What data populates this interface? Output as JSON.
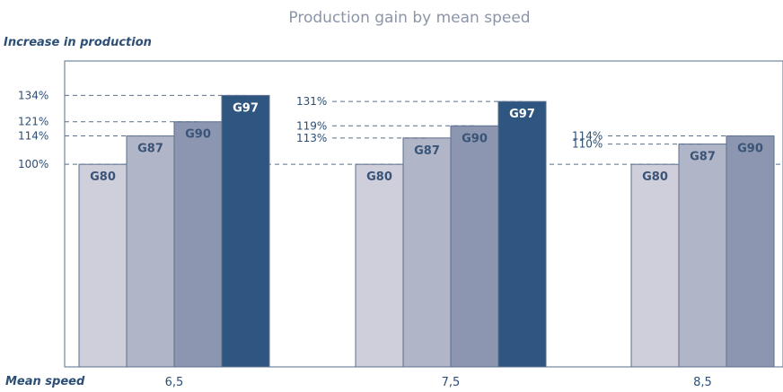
{
  "colors": {
    "G80": "#cfcfdc",
    "G87": "#b1b5c8",
    "G90": "#8d96b0",
    "G97": "#2e5680",
    "axis": "#5a6f8c",
    "text": "#2c4e74",
    "label_light": "#3a5478",
    "label_dark": "#ffffff"
  },
  "chart_data": {
    "type": "bar",
    "title": "Production gain by mean speed",
    "ylabel": "Increase in production",
    "xlabel": "Mean speed",
    "categories": [
      "6,5",
      "7,5",
      "8,5"
    ],
    "series": [
      {
        "name": "G80",
        "values": [
          100,
          100,
          100
        ]
      },
      {
        "name": "G87",
        "values": [
          114,
          113,
          110
        ]
      },
      {
        "name": "G90",
        "values": [
          121,
          119,
          114
        ]
      },
      {
        "name": "G97",
        "values": [
          134,
          131,
          null
        ]
      }
    ],
    "annotations": [
      [
        "134%",
        "121%",
        "114%",
        "100%"
      ],
      [
        "131%",
        "119%",
        "113%"
      ],
      [
        "114%",
        "110%"
      ]
    ],
    "ylim": [
      0,
      151
    ],
    "grid": false,
    "legend": "none"
  }
}
